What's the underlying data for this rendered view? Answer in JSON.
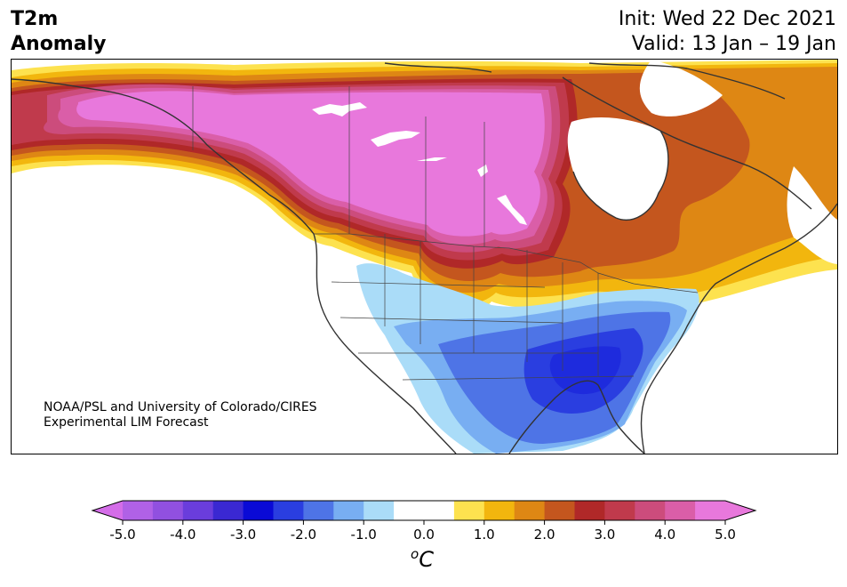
{
  "title": {
    "variable_line1": "T2m",
    "variable_line2": "Anomaly",
    "init": "Init: Wed 22 Dec 2021",
    "valid": "Valid: 13 Jan – 19 Jan"
  },
  "credit": {
    "line1": "NOAA/PSL and University of Colorado/CIRES",
    "line2": "Experimental LIM Forecast"
  },
  "colorbar": {
    "unit_prefix": "o",
    "unit_main": "C",
    "ticks": [
      "-5.0",
      "-4.0",
      "-3.0",
      "-2.0",
      "-1.0",
      "0.0",
      "1.0",
      "2.0",
      "3.0",
      "4.0",
      "5.0"
    ],
    "under_color": "#d46de8",
    "over_color": "#e878dc",
    "bins": [
      {
        "range": [
          -5.0,
          -4.5
        ],
        "color": "#b061e6"
      },
      {
        "range": [
          -4.5,
          -4.0
        ],
        "color": "#9150e0"
      },
      {
        "range": [
          -4.0,
          -3.5
        ],
        "color": "#6a3ddc"
      },
      {
        "range": [
          -3.5,
          -3.0
        ],
        "color": "#3a28d2"
      },
      {
        "range": [
          -3.0,
          -2.5
        ],
        "color": "#0a0ad6"
      },
      {
        "range": [
          -2.5,
          -2.0
        ],
        "color": "#2a3ee0"
      },
      {
        "range": [
          -2.0,
          -1.5
        ],
        "color": "#4e74e6"
      },
      {
        "range": [
          -1.5,
          -1.0
        ],
        "color": "#78aef2"
      },
      {
        "range": [
          -1.0,
          -0.5
        ],
        "color": "#aadcf8"
      },
      {
        "range": [
          -0.5,
          0.5
        ],
        "color": "#ffffff"
      },
      {
        "range": [
          0.5,
          1.0
        ],
        "color": "#fde24f"
      },
      {
        "range": [
          1.0,
          1.5
        ],
        "color": "#f2b60e"
      },
      {
        "range": [
          1.5,
          2.0
        ],
        "color": "#de8714"
      },
      {
        "range": [
          2.0,
          2.5
        ],
        "color": "#c4561e"
      },
      {
        "range": [
          2.5,
          3.0
        ],
        "color": "#b02828"
      },
      {
        "range": [
          3.0,
          3.5
        ],
        "color": "#c03a4c"
      },
      {
        "range": [
          3.5,
          4.0
        ],
        "color": "#cc4c7c"
      },
      {
        "range": [
          4.0,
          4.5
        ],
        "color": "#da5ea8"
      },
      {
        "range": [
          4.5,
          5.0
        ],
        "color": "#e878dc"
      }
    ]
  }
}
